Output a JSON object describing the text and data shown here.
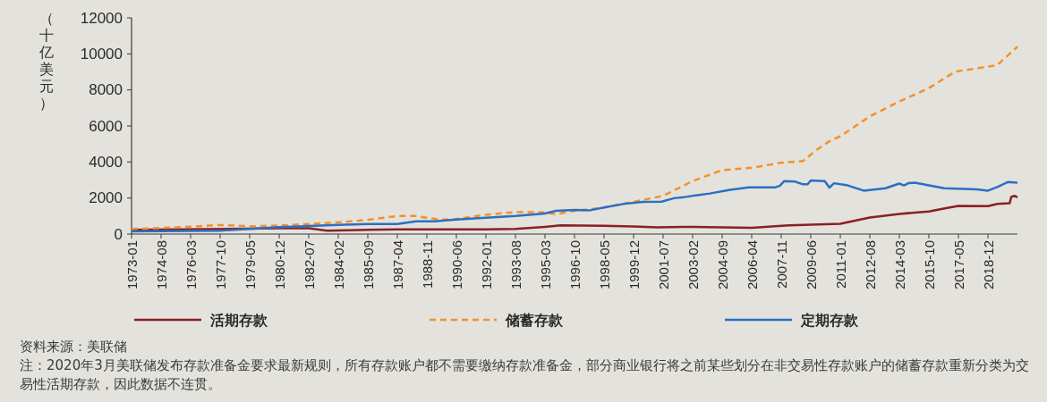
{
  "chart_data": {
    "type": "line",
    "ylabel": "（十亿美元）",
    "legend": "bottom",
    "grid": false,
    "xlim": [
      "1973-01",
      "2020-07"
    ],
    "ylim": [
      0,
      12000
    ],
    "yticks": [
      0,
      2000,
      4000,
      6000,
      8000,
      10000,
      12000
    ],
    "xticks": [
      "1973-01",
      "1974-08",
      "1976-03",
      "1977-10",
      "1979-05",
      "1980-12",
      "1982-07",
      "1984-02",
      "1985-09",
      "1987-04",
      "1988-11",
      "1990-06",
      "1992-01",
      "1993-08",
      "1995-03",
      "1996-10",
      "1998-05",
      "1999-12",
      "2001-07",
      "2003-02",
      "2004-09",
      "2006-04",
      "2007-11",
      "2009-06",
      "2011-01",
      "2012-08",
      "2014-03",
      "2015-10",
      "2017-05",
      "2018-12"
    ],
    "series": [
      {
        "name": "活期存款",
        "color": "#8b1f24",
        "line_style": "solid",
        "x": [
          "1973-01",
          "1980-12",
          "1982-07",
          "1983-07",
          "1985-09",
          "1987-04",
          "1992-01",
          "1993-08",
          "1995-03",
          "1996-01",
          "1998-05",
          "1999-12",
          "2001-03",
          "2003-02",
          "2006-04",
          "2008-04",
          "2011-01",
          "2012-08",
          "2014-03",
          "2015-10",
          "2016-09",
          "2017-05",
          "2018-12",
          "2019-06",
          "2020-02",
          "2020-03",
          "2020-05",
          "2020-07"
        ],
        "values": [
          230,
          320,
          320,
          190,
          230,
          260,
          260,
          280,
          400,
          480,
          460,
          420,
          370,
          400,
          350,
          480,
          570,
          920,
          1120,
          1250,
          1440,
          1560,
          1550,
          1670,
          1710,
          2060,
          2120,
          2040
        ]
      },
      {
        "name": "储蓄存款",
        "color": "#f5902a",
        "line_style": "dashed",
        "x": [
          "1973-01",
          "1974-08",
          "1976-03",
          "1977-10",
          "1979-05",
          "1980-12",
          "1982-07",
          "1984-02",
          "1985-09",
          "1987-04",
          "1988-04",
          "1988-11",
          "1989-08",
          "1990-06",
          "1992-01",
          "1993-08",
          "1994-06",
          "1995-03",
          "1995-10",
          "1996-10",
          "1998-05",
          "1999-12",
          "2001-07",
          "2003-02",
          "2004-09",
          "2006-04",
          "2007-11",
          "2009-01",
          "2009-10",
          "2010-06",
          "2011-01",
          "2012-08",
          "2014-03",
          "2015-10",
          "2017-03",
          "2018-12",
          "2019-06",
          "2020-07"
        ],
        "values": [
          280,
          340,
          410,
          500,
          430,
          470,
          560,
          650,
          790,
          1000,
          1000,
          900,
          790,
          840,
          1070,
          1220,
          1220,
          1200,
          1100,
          1290,
          1470,
          1790,
          2120,
          2940,
          3550,
          3680,
          3960,
          4050,
          4690,
          5150,
          5430,
          6530,
          7360,
          8100,
          9020,
          9290,
          9380,
          10400
        ]
      },
      {
        "name": "定期存款",
        "color": "#2b6fc2",
        "line_style": "solid",
        "x": [
          "1973-01",
          "1977-10",
          "1979-05",
          "1980-12",
          "1982-07",
          "1984-02",
          "1985-09",
          "1987-04",
          "1988-04",
          "1989-04",
          "1990-06",
          "1992-01",
          "1993-08",
          "1995-03",
          "1995-10",
          "1996-10",
          "1997-08",
          "1998-05",
          "1999-06",
          "2000-06",
          "2001-06",
          "2002-02",
          "2002-08",
          "2003-04",
          "2004-01",
          "2005-02",
          "2006-02",
          "2007-07",
          "2007-10",
          "2008-01",
          "2008-08",
          "2009-01",
          "2009-04",
          "2009-06",
          "2010-03",
          "2010-06",
          "2010-09",
          "2011-05",
          "2012-04",
          "2013-06",
          "2014-03",
          "2014-06",
          "2014-09",
          "2015-01",
          "2015-10",
          "2016-08",
          "2017-05",
          "2018-05",
          "2018-12",
          "2019-06",
          "2020-01",
          "2020-07"
        ],
        "values": [
          150,
          190,
          280,
          380,
          450,
          510,
          560,
          560,
          710,
          710,
          800,
          900,
          1000,
          1140,
          1290,
          1340,
          1320,
          1470,
          1680,
          1790,
          1800,
          1990,
          2040,
          2150,
          2250,
          2450,
          2590,
          2590,
          2670,
          2940,
          2910,
          2760,
          2760,
          2980,
          2940,
          2580,
          2820,
          2720,
          2410,
          2540,
          2800,
          2700,
          2830,
          2850,
          2700,
          2540,
          2520,
          2480,
          2410,
          2610,
          2890,
          2850
        ]
      }
    ],
    "annotations": [
      "资料来源：美联储",
      "注：2020年3月美联储发布存款准备金要求最新规则，所有存款账户都不需要缴纳存款准备金，部分商业银行将之前某些划分在非交易性存款账户的储蓄存款重新分类为交易性活期存款，因此数据不连贯。"
    ]
  }
}
